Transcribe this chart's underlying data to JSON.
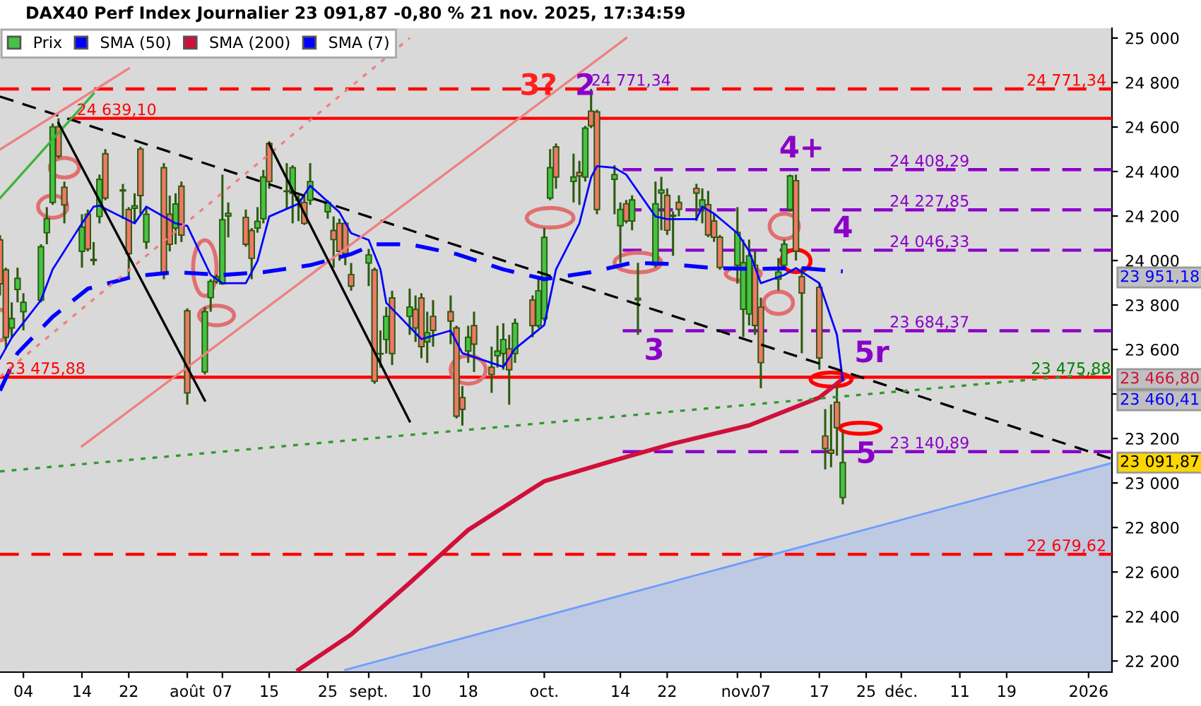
{
  "chart_data": {
    "type": "candlestick",
    "title": "DAX40 Perf Index Journalier 23 091,87 -0,80 % 21 nov. 2025, 17:34:59",
    "xlim": [
      "2025-06-30",
      "2026-01-06"
    ],
    "xticks": [
      {
        "value": "2025-07-04",
        "label": "04"
      },
      {
        "value": "2025-07-14",
        "label": "14"
      },
      {
        "value": "2025-07-22",
        "label": "22"
      },
      {
        "value": "2025-08-01",
        "label": "août"
      },
      {
        "value": "2025-08-07",
        "label": "07"
      },
      {
        "value": "2025-08-15",
        "label": "15"
      },
      {
        "value": "2025-08-25",
        "label": "25"
      },
      {
        "value": "2025-09-01",
        "label": "sept."
      },
      {
        "value": "2025-09-10",
        "label": "10"
      },
      {
        "value": "2025-09-18",
        "label": "18"
      },
      {
        "value": "2025-10-01",
        "label": "oct."
      },
      {
        "value": "2025-10-14",
        "label": "14"
      },
      {
        "value": "2025-10-22",
        "label": "22"
      },
      {
        "value": "2025-11-03",
        "label": "nov."
      },
      {
        "value": "2025-11-07",
        "label": "07"
      },
      {
        "value": "2025-11-17",
        "label": "17"
      },
      {
        "value": "2025-11-25",
        "label": "25"
      },
      {
        "value": "2025-12-01",
        "label": "déc."
      },
      {
        "value": "2025-12-11",
        "label": "11"
      },
      {
        "value": "2025-12-19",
        "label": "19"
      },
      {
        "value": "2026-01-02",
        "label": "2026"
      }
    ],
    "ylim": [
      22150,
      25044
    ],
    "yticks": [
      {
        "value": 22200,
        "label": "22 200"
      },
      {
        "value": 22400,
        "label": "22 400"
      },
      {
        "value": 22600,
        "label": "22 600"
      },
      {
        "value": 22800,
        "label": "22 800"
      },
      {
        "value": 23000,
        "label": "23 000"
      },
      {
        "value": 23200,
        "label": "23 200"
      },
      {
        "value": 23400,
        "label": null
      },
      {
        "value": 23600,
        "label": "23 600"
      },
      {
        "value": 23800,
        "label": "23 800"
      },
      {
        "value": 24000,
        "label": "24 000"
      },
      {
        "value": 24200,
        "label": "24 200"
      },
      {
        "value": 24400,
        "label": "24 400"
      },
      {
        "value": 24600,
        "label": "24 600"
      },
      {
        "value": 24800,
        "label": "24 800"
      },
      {
        "value": 25000,
        "label": "25 000"
      }
    ],
    "legend": "top left",
    "series": [
      {
        "name": "Prix",
        "color": "#44c444",
        "x": [
          "2025-06-30",
          "2025-07-01",
          "2025-07-02",
          "2025-07-03",
          "2025-07-04",
          "2025-07-07",
          "2025-07-08",
          "2025-07-09",
          "2025-07-10",
          "2025-07-11",
          "2025-07-14",
          "2025-07-15",
          "2025-07-16",
          "2025-07-17",
          "2025-07-18",
          "2025-07-21",
          "2025-07-22",
          "2025-07-23",
          "2025-07-24",
          "2025-07-25",
          "2025-07-28",
          "2025-07-29",
          "2025-07-30",
          "2025-07-31",
          "2025-08-01",
          "2025-08-04",
          "2025-08-05",
          "2025-08-06",
          "2025-08-07",
          "2025-08-08",
          "2025-08-11",
          "2025-08-12",
          "2025-08-13",
          "2025-08-14",
          "2025-08-15",
          "2025-08-18",
          "2025-08-19",
          "2025-08-20",
          "2025-08-21",
          "2025-08-22",
          "2025-08-25",
          "2025-08-26",
          "2025-08-27",
          "2025-08-28",
          "2025-08-29",
          "2025-09-01",
          "2025-09-02",
          "2025-09-03",
          "2025-09-04",
          "2025-09-05",
          "2025-09-08",
          "2025-09-09",
          "2025-09-10",
          "2025-09-11",
          "2025-09-12",
          "2025-09-15",
          "2025-09-16",
          "2025-09-17",
          "2025-09-18",
          "2025-09-19",
          "2025-09-22",
          "2025-09-23",
          "2025-09-24",
          "2025-09-25",
          "2025-09-26",
          "2025-09-29",
          "2025-09-30",
          "2025-10-01",
          "2025-10-02",
          "2025-10-03",
          "2025-10-06",
          "2025-10-07",
          "2025-10-08",
          "2025-10-09",
          "2025-10-10",
          "2025-10-13",
          "2025-10-14",
          "2025-10-15",
          "2025-10-16",
          "2025-10-17",
          "2025-10-20",
          "2025-10-21",
          "2025-10-22",
          "2025-10-23",
          "2025-10-24",
          "2025-10-27",
          "2025-10-28",
          "2025-10-29",
          "2025-10-30",
          "2025-10-31",
          "2025-11-03",
          "2025-11-04",
          "2025-11-05",
          "2025-11-06",
          "2025-11-07",
          "2025-11-10",
          "2025-11-11",
          "2025-11-12",
          "2025-11-13",
          "2025-11-14",
          "2025-11-17",
          "2025-11-18",
          "2025-11-19",
          "2025-11-20",
          "2025-11-21"
        ],
        "ohlc": [
          [
            24093,
            24114,
            23843,
            23895
          ],
          [
            23958,
            23968,
            23603,
            23655
          ],
          [
            23697,
            23812,
            23655,
            23739
          ],
          [
            23870,
            23968,
            23812,
            23920
          ],
          [
            23770,
            23853,
            23686,
            23812
          ],
          [
            23822,
            24073,
            23812,
            24062
          ],
          [
            24125,
            24240,
            24073,
            24188
          ],
          [
            24261,
            24616,
            24250,
            24601
          ],
          [
            24601,
            24639,
            24459,
            24469
          ],
          [
            24329,
            24355,
            24167,
            24250
          ],
          [
            24041,
            24208,
            23968,
            24150
          ],
          [
            24208,
            24229,
            24041,
            24052
          ],
          [
            24000,
            24083,
            23979,
            24005
          ],
          [
            24198,
            24386,
            24167,
            24365
          ],
          [
            24480,
            24501,
            24271,
            24281
          ],
          [
            24313,
            24344,
            24187,
            24317
          ],
          [
            24229,
            24240,
            23916,
            24031
          ],
          [
            24235,
            24302,
            24167,
            24246
          ],
          [
            24501,
            24511,
            24208,
            24292
          ],
          [
            24083,
            24240,
            24052,
            24208
          ],
          [
            24417,
            24438,
            23916,
            23937
          ],
          [
            24208,
            24292,
            24041,
            24073
          ],
          [
            24146,
            24302,
            24073,
            24254
          ],
          [
            24334,
            24355,
            24083,
            24114
          ],
          [
            23774,
            23785,
            23352,
            23405
          ],
          [
            23499,
            23791,
            23488,
            23770
          ],
          [
            23833,
            23916,
            23770,
            23906
          ],
          [
            23906,
            23937,
            23896,
            23927
          ],
          [
            23895,
            24386,
            23891,
            24183
          ],
          [
            24200,
            24261,
            24104,
            24212
          ],
          [
            24194,
            24229,
            24062,
            24073
          ],
          [
            24135,
            24146,
            23916,
            24010
          ],
          [
            24146,
            24240,
            24125,
            24176
          ],
          [
            24188,
            24407,
            24167,
            24375
          ],
          [
            24526,
            24536,
            24323,
            24355
          ],
          [
            24310,
            24438,
            24229,
            24313
          ],
          [
            24302,
            24428,
            24167,
            24417
          ],
          [
            24271,
            24292,
            24177,
            24275
          ],
          [
            24261,
            24292,
            24160,
            24167
          ],
          [
            24271,
            24438,
            24250,
            24355
          ],
          [
            24219,
            24271,
            24188,
            24261
          ],
          [
            24135,
            24198,
            23968,
            24094
          ],
          [
            24167,
            24188,
            23999,
            24041
          ],
          [
            24167,
            24177,
            23979,
            24031
          ],
          [
            23937,
            23989,
            23864,
            23885
          ],
          [
            23989,
            24052,
            23885,
            24025
          ],
          [
            23958,
            23968,
            23446,
            23457
          ],
          [
            23582,
            23686,
            23519,
            23580
          ],
          [
            23645,
            23791,
            23582,
            23749
          ],
          [
            23832,
            23864,
            23530,
            23582
          ],
          [
            23749,
            23874,
            23666,
            23791
          ],
          [
            23780,
            23843,
            23634,
            23697
          ],
          [
            23832,
            23853,
            23561,
            23613
          ],
          [
            23634,
            23770,
            23540,
            23676
          ],
          [
            23749,
            23822,
            23613,
            23686
          ],
          [
            23770,
            23843,
            23624,
            23728
          ],
          [
            23697,
            23707,
            23290,
            23300
          ],
          [
            23384,
            23436,
            23258,
            23331
          ],
          [
            23593,
            23707,
            23540,
            23655
          ],
          [
            23707,
            23770,
            23499,
            23624
          ],
          [
            23520,
            23613,
            23405,
            23488
          ],
          [
            23572,
            23707,
            23519,
            23593
          ],
          [
            23582,
            23718,
            23509,
            23645
          ],
          [
            23603,
            23666,
            23352,
            23509
          ],
          [
            23582,
            23739,
            23540,
            23718
          ],
          [
            23822,
            23843,
            23655,
            23707
          ],
          [
            23707,
            23916,
            23697,
            23864
          ],
          [
            23739,
            24146,
            23728,
            24104
          ],
          [
            24281,
            24501,
            24271,
            24417
          ],
          [
            24511,
            24526,
            24323,
            24375
          ],
          [
            24355,
            24480,
            24261,
            24375
          ],
          [
            24396,
            24448,
            24250,
            24380
          ],
          [
            24375,
            24605,
            24355,
            24595
          ],
          [
            24671,
            24771.34,
            24595,
            24605
          ],
          [
            24668,
            24678,
            24208,
            24229
          ],
          [
            24365,
            24428,
            24208,
            24386
          ],
          [
            24156,
            24261,
            23989,
            24229
          ],
          [
            24255,
            24272,
            24167,
            24178
          ],
          [
            24178,
            24293,
            24136,
            24272
          ],
          [
            23830,
            23990,
            23666,
            23823
          ],
          [
            23979,
            24355,
            23969,
            24255
          ],
          [
            24303,
            24376,
            24136,
            24317
          ],
          [
            24293,
            24324,
            24115,
            24136
          ],
          [
            24203,
            24220,
            24021,
            24199
          ],
          [
            24261,
            24293,
            24199,
            24230
          ],
          [
            24324,
            24345,
            24178,
            24303
          ],
          [
            24240,
            24324,
            24167,
            24272
          ],
          [
            24251,
            24313,
            24105,
            24115
          ],
          [
            24178,
            24209,
            24084,
            24105
          ],
          [
            24105,
            24115,
            23958,
            23969
          ],
          [
            23979,
            24240,
            23896,
            24126
          ],
          [
            23781,
            24094,
            23656,
            23990
          ],
          [
            23760,
            24094,
            23708,
            24021
          ],
          [
            23979,
            24042,
            23666,
            23708
          ],
          [
            23791,
            23833,
            23426,
            23541
          ],
          [
            23917,
            24011,
            23865,
            23948
          ],
          [
            23979,
            24094,
            23958,
            24073
          ],
          [
            24230,
            24386,
            24220,
            24380
          ],
          [
            24359,
            24386,
            24000,
            24042
          ],
          [
            23927,
            23969,
            23583,
            23854
          ],
          [
            23879,
            23896,
            23510,
            23562
          ],
          [
            23211,
            23332,
            23061,
            23155
          ],
          [
            23148,
            23353,
            23071,
            23134
          ],
          [
            23363,
            23457,
            23123,
            23249
          ],
          [
            22935,
            23228,
            22904,
            23091.87
          ]
        ],
        "colors": [
          "#f07868",
          "#f07868",
          "#44c444",
          "#44c444",
          "#44c444",
          "#44c444",
          "#44c444",
          "#44c444",
          "#f07868",
          "#f07868",
          "#44c444",
          "#f07868",
          "#44c444",
          "#44c444",
          "#f07868",
          "#44c444",
          "#f07868",
          "#44c444",
          "#f07868",
          "#44c444",
          "#f07868",
          "#f07868",
          "#44c444",
          "#f07868",
          "#f07868",
          "#44c444",
          "#44c444",
          "#44c444",
          "#44c444",
          "#44c444",
          "#f07868",
          "#f07868",
          "#44c444",
          "#44c444",
          "#f07868",
          "#44c444",
          "#44c444",
          "#44c444",
          "#f07868",
          "#44c444",
          "#44c444",
          "#f07868",
          "#f07868",
          "#f07868",
          "#f07868",
          "#44c444",
          "#f07868",
          "#f07868",
          "#44c444",
          "#f07868",
          "#44c444",
          "#f07868",
          "#f07868",
          "#44c444",
          "#f07868",
          "#f07868",
          "#f07868",
          "#f07868",
          "#44c444",
          "#f07868",
          "#f07868",
          "#44c444",
          "#44c444",
          "#f07868",
          "#44c444",
          "#f07868",
          "#44c444",
          "#44c444",
          "#44c444",
          "#f07868",
          "#44c444",
          "#f07868",
          "#44c444",
          "#f07868",
          "#f07868",
          "#44c444",
          "#44c444",
          "#f07868",
          "#44c444",
          "#f07868",
          "#44c444",
          "#44c444",
          "#f07868",
          "#f07868",
          "#f07868",
          "#f07868",
          "#44c444",
          "#f07868",
          "#f07868",
          "#f07868",
          "#44c444",
          "#44c444",
          "#44c444",
          "#f07868",
          "#f07868",
          "#44c444",
          "#44c444",
          "#44c444",
          "#f07868",
          "#f07868",
          "#f07868",
          "#f07868",
          "#f07868",
          "#f07868",
          "#44c444"
        ]
      },
      {
        "type": "line",
        "name": "SMA (50)",
        "color": "#0000ff",
        "line_style": "dashed",
        "x": [
          "2025-06-30",
          "2025-07-03",
          "2025-07-09",
          "2025-07-15",
          "2025-07-23",
          "2025-07-30",
          "2025-08-07",
          "2025-08-14",
          "2025-08-22",
          "2025-08-29",
          "2025-09-02",
          "2025-09-08",
          "2025-09-16",
          "2025-09-24",
          "2025-10-01",
          "2025-10-09",
          "2025-10-16",
          "2025-10-22",
          "2025-10-30",
          "2025-11-06",
          "2025-11-14",
          "2025-11-21"
        ],
        "values": [
          23415,
          23584,
          23747,
          23873,
          23929,
          23948,
          23935,
          23948,
          23979,
          24029,
          24073,
          24073,
          24029,
          23960,
          23916,
          23948,
          23990,
          23985,
          23966,
          23962,
          23966,
          23951.18
        ]
      },
      {
        "type": "line",
        "name": "SMA (200)",
        "color": "#d0103a",
        "line_style": "solid",
        "x": [
          "2025-08-20",
          "2025-08-29",
          "2025-09-08",
          "2025-09-18",
          "2025-10-01",
          "2025-10-13",
          "2025-10-23",
          "2025-11-05",
          "2025-11-17",
          "2025-11-20",
          "2025-11-21"
        ],
        "values": [
          22160,
          22319,
          22551,
          22789,
          23008,
          23102,
          23177,
          23259,
          23384,
          23447,
          23466.8
        ]
      },
      {
        "type": "line",
        "name": "SMA (7)",
        "color": "#0000ff",
        "line_style": "solid",
        "x": [
          "2025-06-30",
          "2025-07-02",
          "2025-07-07",
          "2025-07-09",
          "2025-07-14",
          "2025-07-16",
          "2025-07-17",
          "2025-07-23",
          "2025-07-25",
          "2025-07-30",
          "2025-08-01",
          "2025-08-05",
          "2025-08-07",
          "2025-08-11",
          "2025-08-13",
          "2025-08-15",
          "2025-08-20",
          "2025-08-22",
          "2025-08-27",
          "2025-08-29",
          "2025-09-01",
          "2025-09-03",
          "2025-09-04",
          "2025-09-10",
          "2025-09-15",
          "2025-09-17",
          "2025-09-24",
          "2025-09-26",
          "2025-10-01",
          "2025-10-03",
          "2025-10-07",
          "2025-10-09",
          "2025-10-10",
          "2025-10-13",
          "2025-10-15",
          "2025-10-20",
          "2025-10-22",
          "2025-10-27",
          "2025-10-28",
          "2025-10-30",
          "2025-11-03",
          "2025-11-05",
          "2025-11-07",
          "2025-11-11",
          "2025-11-13",
          "2025-11-17",
          "2025-11-20",
          "2025-11-21"
        ],
        "values": [
          23559,
          23653,
          23822,
          23960,
          24167,
          24242,
          24246,
          24167,
          24242,
          24167,
          24156,
          23935,
          23898,
          23898,
          23998,
          24198,
          24255,
          24336,
          24217,
          24123,
          24092,
          23960,
          23810,
          23647,
          23685,
          23584,
          23522,
          23603,
          23710,
          23960,
          24167,
          24374,
          24424,
          24417,
          24386,
          24198,
          24186,
          24186,
          24242,
          24211,
          24123,
          24042,
          23898,
          23935,
          23966,
          23898,
          23666,
          23460.41
        ]
      },
      {
        "type": "line",
        "color": "#000000",
        "line_style": "dashed",
        "x": [
          "2025-06-30",
          "2026-01-06"
        ],
        "values": [
          24737,
          23108
        ]
      },
      {
        "type": "line",
        "color": "#2e9a2e",
        "line_style": "dotted",
        "x": [
          "2025-06-30",
          "2026-01-06"
        ],
        "values": [
          23052,
          23497
        ]
      },
      {
        "type": "area",
        "color": "#6f9cff",
        "x": [
          "2025-08-28",
          "2026-01-06"
        ],
        "values": [
          22160,
          23090
        ]
      },
      {
        "type": "line",
        "color": "#3cb43c",
        "line_style": "solid",
        "x": [
          "2025-06-30",
          "2025-07-16"
        ],
        "values": [
          24280,
          24750
        ]
      },
      {
        "type": "line",
        "color": "#f08080",
        "line_style": "solid",
        "x": [
          "2025-06-30",
          "2025-07-22"
        ],
        "values": [
          24499,
          24863
        ]
      },
      {
        "type": "line",
        "color": "#f08080",
        "line_style": "solid",
        "x": [
          "2025-07-14",
          "2025-10-15"
        ],
        "values": [
          23165,
          25000
        ]
      },
      {
        "type": "line",
        "color": "#f08080",
        "line_style": "dotted",
        "x": [
          "2025-06-30",
          "2025-09-08"
        ],
        "values": [
          23478,
          25000
        ]
      },
      {
        "type": "line",
        "color": "#000000",
        "line_style": "solid",
        "x": [
          "2025-07-10",
          "2025-08-04"
        ],
        "values": [
          24618,
          23371
        ]
      },
      {
        "type": "line",
        "color": "#000000",
        "line_style": "solid",
        "x": [
          "2025-08-15",
          "2025-09-08"
        ],
        "values": [
          24524,
          23277
        ]
      }
    ],
    "ref_lines": [
      {
        "axis": "y",
        "value": 24771.34,
        "label": "24 771,34",
        "color": "#ff0000",
        "line_style": "dashed"
      },
      {
        "axis": "y",
        "value": 24639.1,
        "label": "24 639,10",
        "color": "#ff0000",
        "line_style": "solid"
      },
      {
        "axis": "y",
        "value": 24408.29,
        "label": "24 408,29",
        "color": "#8a00c8",
        "line_style": "dashed"
      },
      {
        "axis": "y",
        "value": 24227.85,
        "label": "24 227,85",
        "color": "#8a00c8",
        "line_style": "dashed"
      },
      {
        "axis": "y",
        "value": 24046.33,
        "label": "24 046,33",
        "color": "#8a00c8",
        "line_style": "dashed"
      },
      {
        "axis": "y",
        "value": 23684.37,
        "label": "23 684,37",
        "color": "#8a00c8",
        "line_style": "dashed"
      },
      {
        "axis": "y",
        "value": 23475.88,
        "label": "23 475,88",
        "color": "#ff0000",
        "line_style": "solid"
      },
      {
        "axis": "y",
        "value": 23140.89,
        "label": "23 140,89",
        "color": "#8a00c8",
        "line_style": "dashed"
      },
      {
        "axis": "y",
        "value": 22679.62,
        "label": "22 679,62",
        "color": "#ff0000",
        "line_style": "dashed"
      }
    ],
    "annotations": [
      {
        "text": "3?",
        "x": "2025-09-30",
        "y": 24781
      },
      {
        "text": "2",
        "x": "2025-10-08",
        "y": 24781
      },
      "3",
      "4+",
      "4",
      "5r",
      {
        "text": "5",
        "x": "2025-11-25",
        "y": 23127
      },
      {
        "text": "24 771,34",
        "x": "2025-10-09",
        "y": 24771.34
      },
      "23 091,87",
      {
        "text": "23 475,88",
        "x": "2025-12-30",
        "y": 23475.88
      },
      "23 951,18",
      "23 466,80",
      "23 460,41"
    ]
  }
}
